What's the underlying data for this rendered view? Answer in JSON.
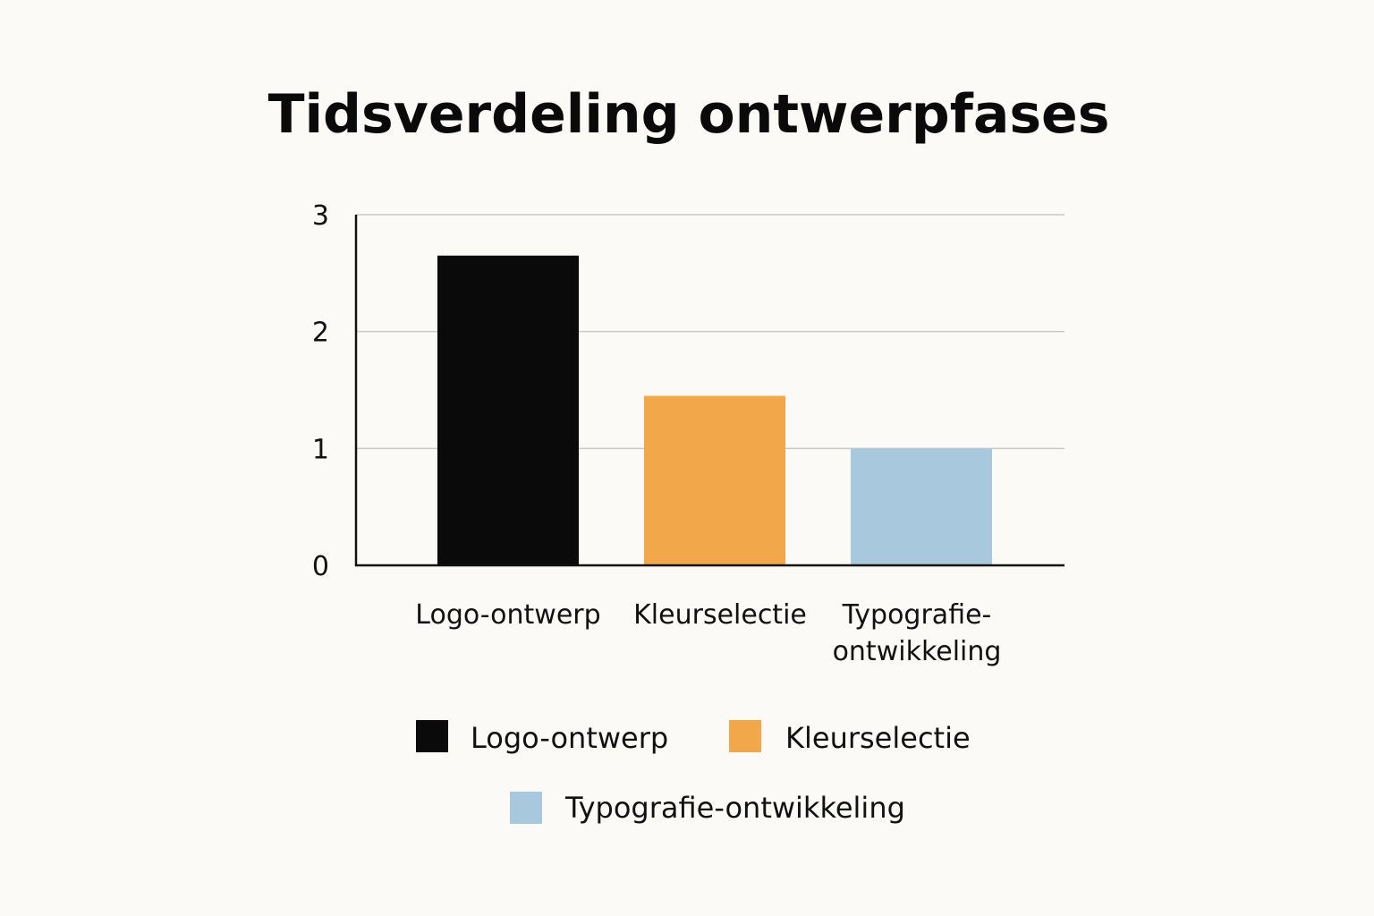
{
  "chart_data": {
    "type": "bar",
    "title": "Tidsverdeling ontwerpfases",
    "xlabel": "",
    "ylabel": "",
    "categories": [
      "Logo-ontwerp",
      "Kleurselectie",
      "Typografie-ontwikkeling"
    ],
    "category_label_lines": [
      [
        "Logo-ontwerp"
      ],
      [
        "Kleurselectie"
      ],
      [
        "Typografie-",
        "ontwikkeling"
      ]
    ],
    "values": [
      2.65,
      1.45,
      1.0
    ],
    "colors": [
      "#0a0a0a",
      "#f2a84a",
      "#a8c8dd"
    ],
    "ylim": [
      0,
      3
    ],
    "yticks": [
      0,
      1,
      2,
      3
    ],
    "grid": true,
    "legend": {
      "placement": "bottom",
      "entries": [
        "Logo-ontwerp",
        "Kleurselectie",
        "Typografie-ontwikkeling"
      ]
    }
  }
}
